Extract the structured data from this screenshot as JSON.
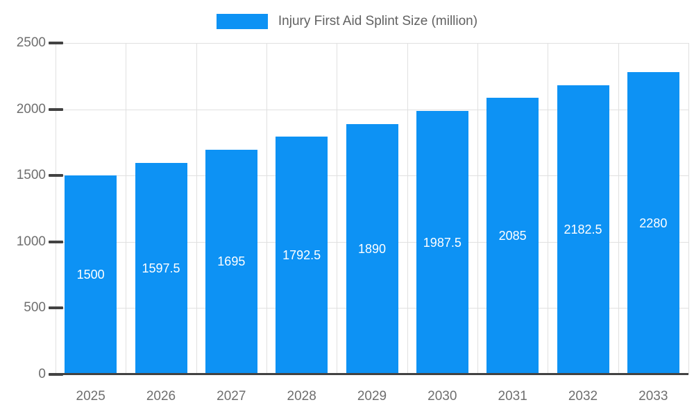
{
  "chart_data": {
    "type": "bar",
    "title": "Injury First Aid Splint Size (million)",
    "categories": [
      "2025",
      "2026",
      "2027",
      "2028",
      "2029",
      "2030",
      "2031",
      "2032",
      "2033"
    ],
    "values": [
      1500,
      1597.5,
      1695,
      1792.5,
      1890,
      1987.5,
      2085,
      2182.5,
      2280
    ],
    "value_labels": [
      "1500",
      "1597.5",
      "1695",
      "1792.5",
      "1890",
      "1987.5",
      "2085",
      "2182.5",
      "2280"
    ],
    "xlabel": "",
    "ylabel": "",
    "ylim": [
      0,
      2500
    ],
    "yticks": [
      0,
      500,
      1000,
      1500,
      2000,
      2500
    ],
    "ytick_labels": [
      "0",
      "500",
      "1000",
      "1500",
      "2000",
      "2500"
    ],
    "grid": true,
    "legend_position": "top",
    "colors": {
      "bar": "#0d92f4",
      "grid": "#e0e0e0",
      "axis": "#424242",
      "tick_label": "#6e6e6e",
      "title": "#616161",
      "value_label": "#ffffff"
    }
  }
}
